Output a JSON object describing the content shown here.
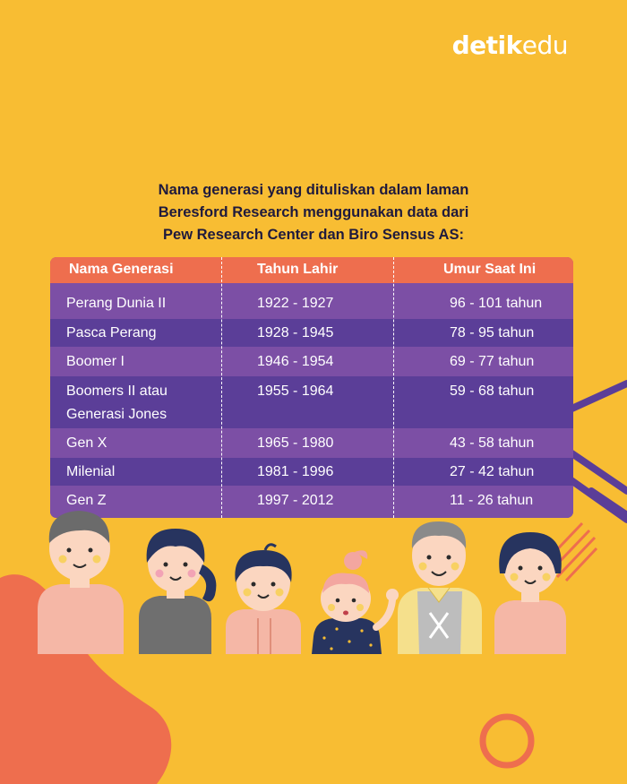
{
  "brand": {
    "bold": "detik",
    "light": "edu"
  },
  "heading": [
    "Nama generasi yang dituliskan dalam laman",
    "Beresford Research menggunakan data dari",
    "Pew Research Center dan Biro Sensus AS:"
  ],
  "table": {
    "headers": [
      "Nama Generasi",
      "Tahun Lahir",
      "Umur Saat Ini"
    ],
    "rows": [
      {
        "name": "Perang Dunia II",
        "born": "1922 - 1927",
        "age": "96 - 101 tahun"
      },
      {
        "name": "Pasca Perang",
        "born": "1928 - 1945",
        "age": "78 - 95 tahun"
      },
      {
        "name": "Boomer I",
        "born": "1946 - 1954",
        "age": "69 - 77 tahun"
      },
      {
        "name": "Boomers II atau",
        "name2": "Generasi Jones",
        "born": "1955 - 1964",
        "age": "59 - 68 tahun"
      },
      {
        "name": "Gen X",
        "born": "1965 - 1980",
        "age": "43 - 58 tahun"
      },
      {
        "name": "Milenial",
        "born": "1981 - 1996",
        "age": "27 - 42 tahun"
      },
      {
        "name": "Gen Z",
        "born": "1997 - 2012",
        "age": "11 - 26 tahun"
      }
    ]
  },
  "colors": {
    "background": "#f8bd33",
    "header": "#ee6e4e",
    "row_light": "#7c4fa5",
    "row_dark": "#5b3e98",
    "blob": "#ee6e4e"
  }
}
